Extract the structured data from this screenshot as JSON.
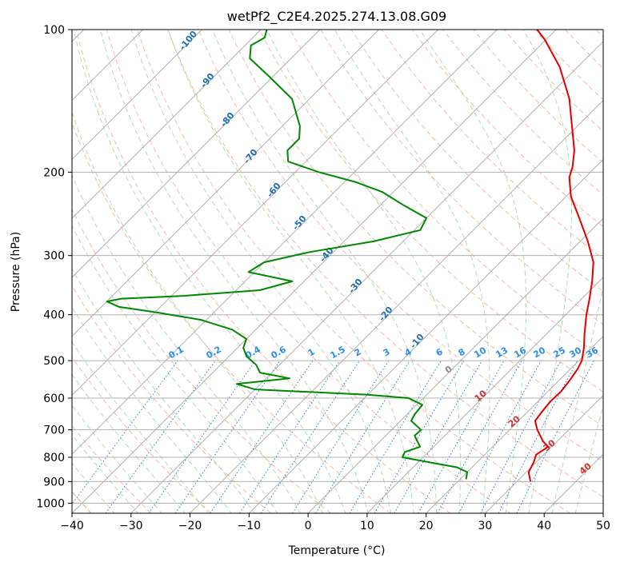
{
  "chart_data": {
    "type": "line",
    "title": "wetPf2_C2E4.2025.274.13.08.G09",
    "xlabel": "Temperature (°C)",
    "ylabel": "Pressure (hPa)",
    "xlim": [
      -40,
      50
    ],
    "ylim": [
      1050,
      100
    ],
    "y_scale": "log",
    "skew": true,
    "grid": true,
    "x_ticks": [
      -40,
      -30,
      -20,
      -10,
      0,
      10,
      20,
      30,
      40,
      50
    ],
    "y_ticks": [
      100,
      200,
      300,
      400,
      500,
      600,
      700,
      800,
      900,
      1000
    ],
    "series": [
      {
        "role": "temperature",
        "color": "#e00000",
        "pressure": [
          900,
          860,
          820,
          790,
          760,
          740,
          700,
          670,
          640,
          610,
          580,
          550,
          520,
          500,
          470,
          440,
          400,
          370,
          340,
          310,
          280,
          250,
          225,
          205,
          195,
          180,
          160,
          140,
          120,
          105,
          100
        ],
        "temperature": [
          32.3,
          30.4,
          29.6,
          28.7,
          29.4,
          27.6,
          24.7,
          22.8,
          22.4,
          22.1,
          22.2,
          21.8,
          21.2,
          20.5,
          18.7,
          16.5,
          13.5,
          11.3,
          8.8,
          5.8,
          1.3,
          -4.1,
          -9.2,
          -12.7,
          -13.9,
          -16.4,
          -20.9,
          -26.0,
          -33.0,
          -40.2,
          -43.2
        ]
      },
      {
        "role": "dewpoint",
        "color": "#008800",
        "pressure": [
          890,
          860,
          840,
          820,
          800,
          780,
          760,
          720,
          700,
          670,
          650,
          620,
          600,
          590,
          575,
          560,
          545,
          530,
          510,
          490,
          470,
          450,
          430,
          410,
          395,
          385,
          375,
          370,
          365,
          355,
          340,
          325,
          310,
          295,
          280,
          265,
          250,
          235,
          220,
          210,
          200,
          190,
          180,
          170,
          160,
          140,
          125,
          115,
          108,
          104,
          100
        ],
        "temperature": [
          21.0,
          20.0,
          17.5,
          12.0,
          6.5,
          6.0,
          7.7,
          4.9,
          5.0,
          1.8,
          1.3,
          1.0,
          -2.5,
          -10.0,
          -30.0,
          -34.0,
          -26.0,
          -32.0,
          -34.0,
          -37.0,
          -39.0,
          -40.0,
          -44.0,
          -51.0,
          -60.0,
          -67.0,
          -70.0,
          -68.0,
          -58.0,
          -46.0,
          -42.0,
          -51.0,
          -50.0,
          -44.0,
          -35.0,
          -29.0,
          -30.0,
          -36.0,
          -42.0,
          -48.0,
          -56.0,
          -63.0,
          -65.0,
          -65.0,
          -67.0,
          -73.0,
          -81.0,
          -87.0,
          -89.0,
          -88.0,
          -89.0
        ]
      }
    ],
    "dry_adiabat_labels": [
      "-100",
      "-90",
      "-80",
      "-70",
      "-60",
      "-50",
      "-40",
      "-30",
      "-20",
      "-10"
    ],
    "mixing_ratio_labels": [
      "0.1",
      "0.2",
      "0.4",
      "0.6",
      "1",
      "1.5",
      "2",
      "3",
      "4",
      "6",
      "8",
      "10",
      "13",
      "16",
      "20",
      "25",
      "30",
      "36"
    ],
    "moist_adiabat_labels": [
      "0",
      "10",
      "20",
      "30",
      "40"
    ]
  }
}
